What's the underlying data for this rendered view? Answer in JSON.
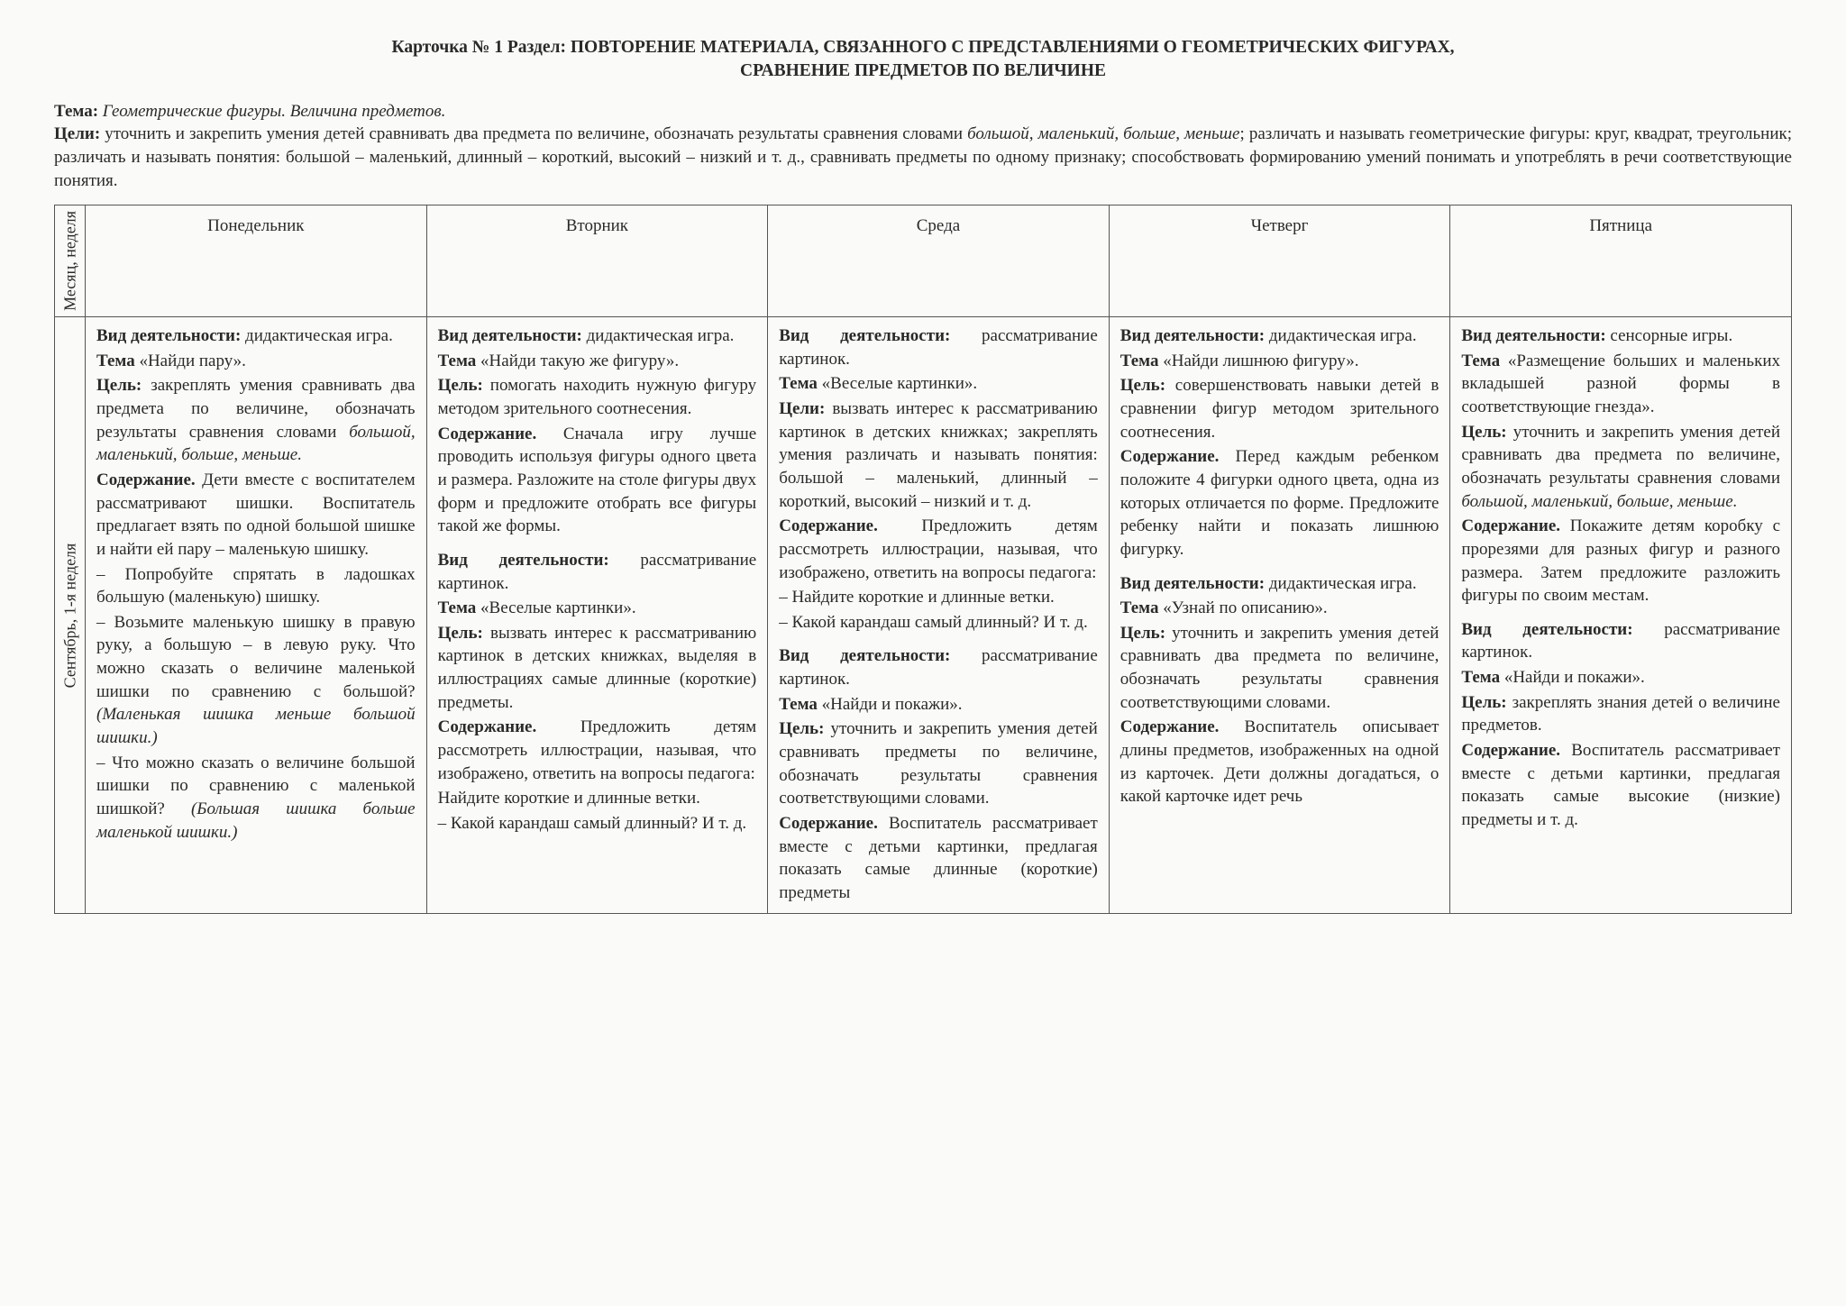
{
  "header": {
    "line1": "Карточка № 1  Раздел: ПОВТОРЕНИЕ МАТЕРИАЛА, СВЯЗАННОГО С ПРЕДСТАВЛЕНИЯМИ О ГЕОМЕТРИЧЕСКИХ ФИГУРАХ,",
    "line2": "СРАВНЕНИЕ ПРЕДМЕТОВ ПО ВЕЛИЧИНЕ"
  },
  "intro": {
    "tema_label": "Тема:",
    "tema_text": "Геометрические фигуры. Величина предметов.",
    "celi_label": "Цели:",
    "celi_text1": "уточнить и закрепить умения детей сравнивать два предмета по величине, обозначать результаты сравнения словами ",
    "celi_ital": "большой, маленький, больше, меньше",
    "celi_text2": "; различать и называть геометрические фигуры: круг, квадрат, треугольник; различать и называть понятия: большой – маленький, длинный – короткий, высокий – низкий и т. д., сравнивать предметы по одному признаку; способствовать формированию умений понимать и употреблять в речи соответствующие понятия."
  },
  "columns": {
    "side": "Месяц, неделя",
    "mon": "Понедельник",
    "tue": "Вторник",
    "wed": "Среда",
    "thu": "Четверг",
    "fri": "Пятница"
  },
  "row_label": "Сентябрь, 1-я неделя",
  "mon": {
    "a1_b": "Вид деятельности:",
    "a1": " дидактическая игра.",
    "a2_b": "Тема ",
    "a2": "«Найди пару».",
    "a3_b": "Цель:",
    "a3": " закреплять умения сравнивать два предмета по величине, обозначать результаты сравнения словами ",
    "a3_i": "большой, маленький, больше, меньше.",
    "a4_b": "Содержание.",
    "a4": " Дети вместе с воспитателем рассматривают шишки. Воспитатель предлагает взять по одной большой шишке и найти ей пару – маленькую шишку.",
    "a5": "– Попробуйте спрятать в ладошках большую (маленькую) шишку.",
    "a6": "– Возьмите маленькую шишку в правую руку, а большую – в левую руку. Что можно сказать о величине маленькой шишки по сравнению с большой? ",
    "a6_i": "(Маленькая шишка меньше большой шишки.)",
    "a7": "– Что можно сказать о величине большой шишки по сравнению с маленькой шишкой? ",
    "a7_i": "(Большая шишка больше маленькой шишки.)"
  },
  "tue": {
    "a1_b": "Вид деятельности:",
    "a1": " дидактическая игра.",
    "a2_b": "Тема ",
    "a2": "«Найди такую же фигуру».",
    "a3_b": "Цель:",
    "a3": " помогать находить нужную фигуру методом зрительного соотнесения.",
    "a4_b": "Содержание.",
    "a4": " Сначала игру лучше проводить используя фигуры одного цвета и размера. Разложите на столе фигуры двух форм и предложите отобрать все фигуры такой же формы.",
    "b1_b": "Вид деятельности:",
    "b1": " рассматривание картинок.",
    "b2_b": "Тема ",
    "b2": "«Веселые картинки».",
    "b3_b": "Цель:",
    "b3": " вызвать интерес к рассматриванию картинок в детских книжках, выделяя в иллюстрациях самые длинные (короткие) предметы.",
    "b4_b": "Содержание.",
    "b4": " Предложить детям рассмотреть иллюстрации, называя, что изображено, ответить на вопросы педагога:",
    "b5": "Найдите короткие и длинные ветки.",
    "b6": "– Какой карандаш самый длинный? И т. д."
  },
  "wed": {
    "a1_b": "Вид деятельности:",
    "a1": " рассматривание картинок.",
    "a2_b": "Тема ",
    "a2": "«Веселые картинки».",
    "a3_b": "Цели:",
    "a3": " вызвать интерес к рассматриванию картинок в детских книжках; закреплять умения различать и называть понятия: большой – маленький, длинный – короткий, высокий – низкий и т. д.",
    "a4_b": "Содержание.",
    "a4": " Предложить детям рассмотреть иллюстрации, называя, что изображено, ответить на вопросы педагога:",
    "a5": "– Найдите короткие и длинные ветки.",
    "a6": "– Какой карандаш самый длинный? И т. д.",
    "b1_b": "Вид деятельности:",
    "b1": " рассматривание картинок.",
    "b2_b": "Тема ",
    "b2": "«Найди и покажи».",
    "b3_b": "Цель:",
    "b3": " уточнить и закрепить умения детей сравнивать предметы по величине, обозначать результаты сравнения соответствующими словами.",
    "b4_b": "Содержание.",
    "b4": " Воспитатель рассматривает вместе с детьми картинки, предлагая показать самые длинные (короткие) предметы"
  },
  "thu": {
    "a1_b": "Вид деятельности:",
    "a1": " дидактическая игра.",
    "a2_b": "Тема ",
    "a2": "«Найди лишнюю фигуру».",
    "a3_b": "Цель:",
    "a3": " совершенствовать навыки детей в сравнении фигур методом зрительного соотнесения.",
    "a4_b": "Содержание.",
    "a4": " Перед каждым ребенком положите 4 фигурки одного цвета, одна из которых отличается по форме. Предложите ребенку найти и показать лишнюю фигурку.",
    "b1_b": "Вид деятельности:",
    "b1": " дидактическая игра.",
    "b2_b": "Тема ",
    "b2": "«Узнай по описанию».",
    "b3_b": "Цель:",
    "b3": " уточнить и закрепить умения детей сравнивать два предмета по величине, обозначать результаты сравнения соответствующими словами.",
    "b4_b": "Содержание.",
    "b4": " Воспитатель описывает длины предметов, изображенных на одной из карточек. Дети должны догадаться, о какой карточке идет речь"
  },
  "fri": {
    "a1_b": "Вид деятельности:",
    "a1": " сенсорные игры.",
    "a2_b": "Тема ",
    "a2": "«Размещение больших и маленьких вкладышей разной формы в соответствующие гнезда».",
    "a3_b": "Цель:",
    "a3": " уточнить и закрепить умения детей сравнивать два предмета по величине, обозначать результаты сравнения словами ",
    "a3_i": "большой, маленький, больше, меньше.",
    "a4_b": "Содержание.",
    "a4": " Покажите детям коробку с прорезями для разных фигур и разного размера. Затем предложите разложить фигуры по своим местам.",
    "b1_b": "Вид деятельности:",
    "b1": " рассматривание картинок.",
    "b2_b": "Тема ",
    "b2": "«Найди и покажи».",
    "b3_b": "Цель:",
    "b3": " закреплять знания детей о величине предметов.",
    "b4_b": "Содержание.",
    "b4": " Воспитатель рассматривает вместе с детьми картинки, предлагая показать самые высокие (низкие) предметы и т. д."
  }
}
